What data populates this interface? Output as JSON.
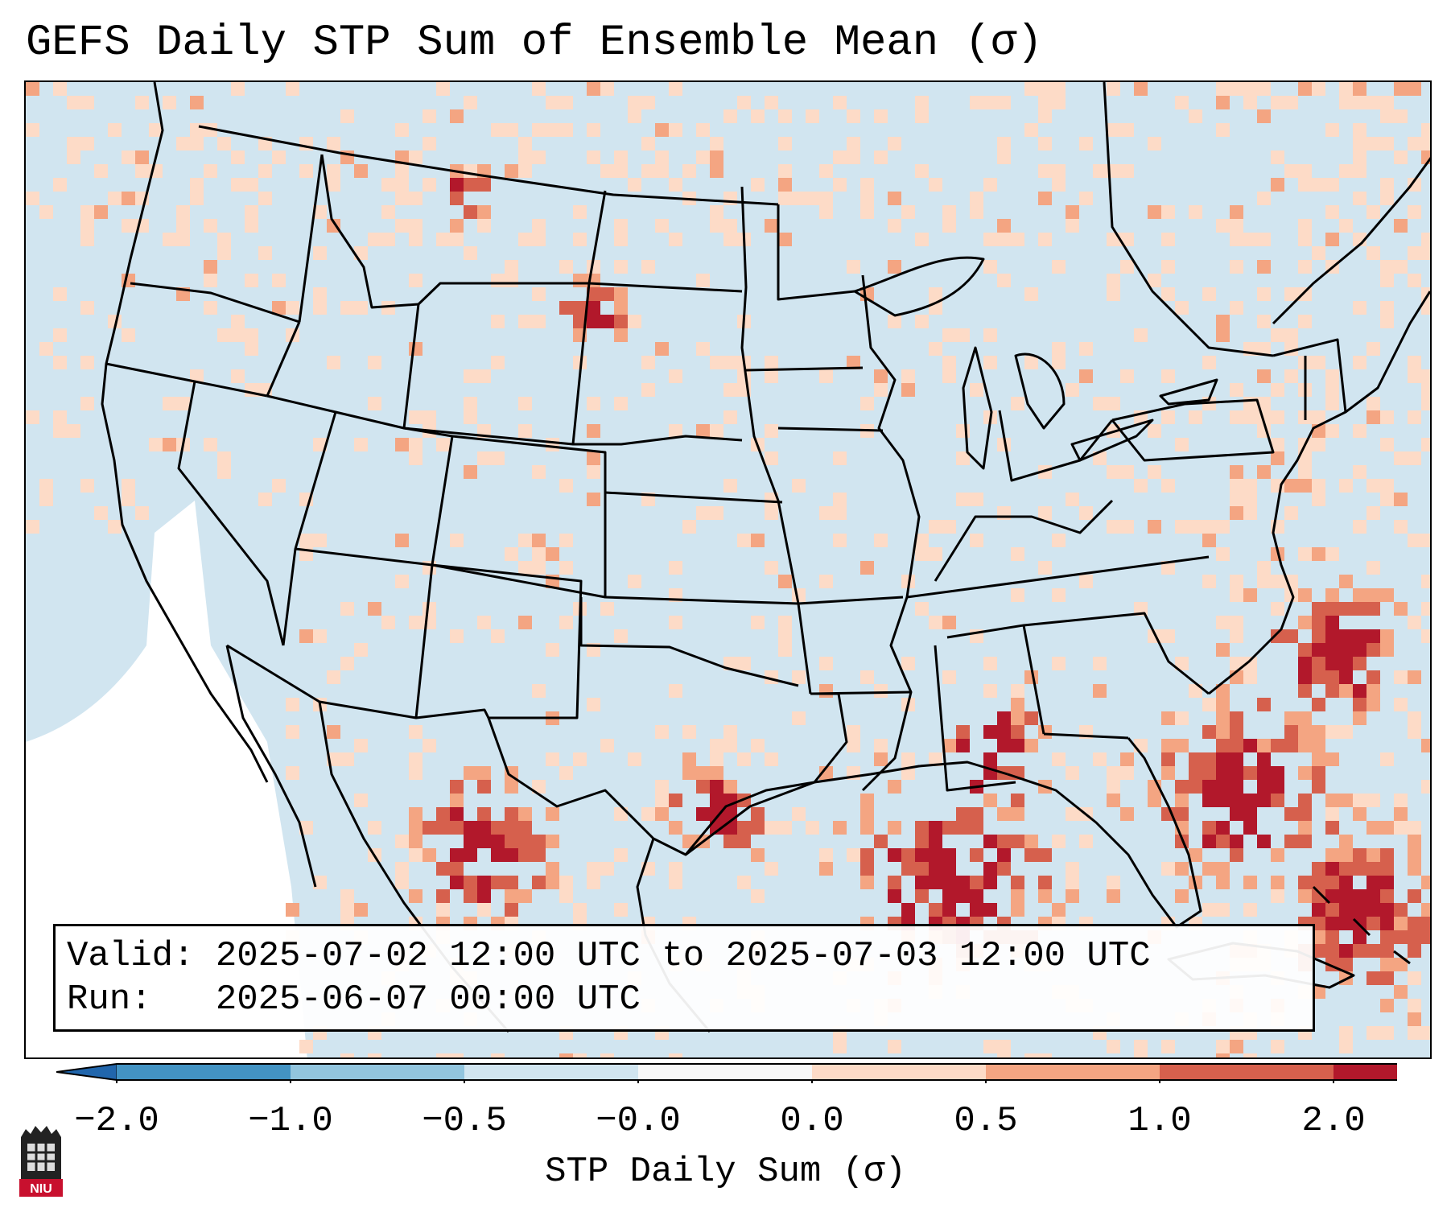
{
  "title": "GEFS Daily STP Sum of Ensemble Mean (σ)",
  "info": {
    "valid_label": "Valid:",
    "valid_value": "2025-07-02 12:00 UTC to 2025-07-03 12:00 UTC",
    "run_label": "Run:",
    "run_value": "2025-06-07 00:00 UTC"
  },
  "colorbar": {
    "label": "STP Daily Sum (σ)",
    "ticks": [
      "−2.0",
      "−1.0",
      "−0.5",
      "−0.0",
      "0.0",
      "0.5",
      "1.0",
      "2.0"
    ],
    "colors": [
      "#4393c3",
      "#92c5de",
      "#d1e5f0",
      "#f7f7f7",
      "#fddbc7",
      "#f4a582",
      "#d6604d",
      "#b2182b"
    ],
    "under_color": "#2166ac",
    "over_color": "#b2182b"
  },
  "logo": {
    "text": "NIU"
  },
  "colors": {
    "ocean_missing": "#ffffff",
    "land_background": "#d1e5f0",
    "border": "#000000"
  }
}
